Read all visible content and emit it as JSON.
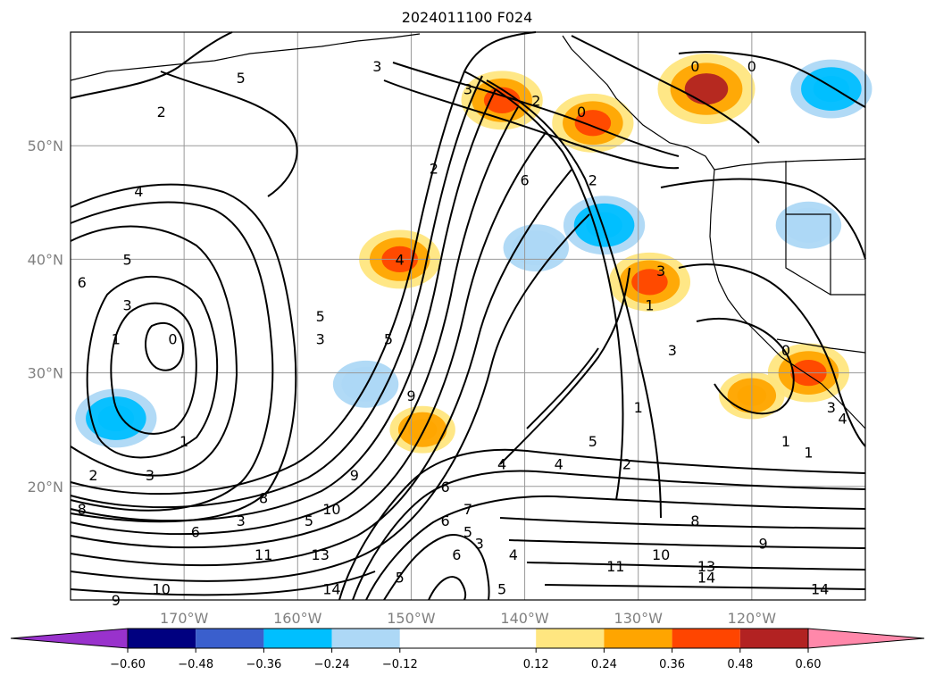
{
  "chart_data": {
    "type": "heatmap",
    "title": "2024011100 F024",
    "x_axis": {
      "range": [
        -180,
        -110
      ],
      "ticks": [
        -170,
        -160,
        -150,
        -140,
        -130,
        -120
      ],
      "tick_labels": [
        "170°W",
        "160°W",
        "150°W",
        "140°W",
        "130°W",
        "120°W"
      ]
    },
    "y_axis": {
      "range": [
        10,
        60
      ],
      "ticks": [
        20,
        30,
        40,
        50
      ],
      "tick_labels": [
        "20°N",
        "30°N",
        "40°N",
        "50°N"
      ]
    },
    "grid": true,
    "colorbar": {
      "orientation": "horizontal",
      "extend": "both",
      "bounds": [
        -0.6,
        -0.48,
        -0.36,
        -0.24,
        -0.12,
        0.12,
        0.24,
        0.36,
        0.48,
        0.6
      ],
      "tick_labels": [
        "−0.60",
        "−0.48",
        "−0.36",
        "−0.24",
        "−0.12",
        "0.12",
        "0.24",
        "0.36",
        "0.48",
        "0.60"
      ],
      "colors": [
        "#9932cc",
        "#000080",
        "#3a5fcd",
        "#00bfff",
        "#add8f6",
        "#ffffff",
        "#ffe680",
        "#ffa500",
        "#ff4500",
        "#b22222",
        "#ff88aa"
      ]
    },
    "shaded_regions": [
      {
        "lon": -142,
        "lat": 54,
        "value": 0.36
      },
      {
        "lon": -134,
        "lat": 52,
        "value": 0.36
      },
      {
        "lon": -124,
        "lat": 55,
        "value": 0.48
      },
      {
        "lon": -151,
        "lat": 40,
        "value": 0.36
      },
      {
        "lon": -129,
        "lat": 38,
        "value": 0.36
      },
      {
        "lon": -133,
        "lat": 43,
        "value": -0.36
      },
      {
        "lon": -139,
        "lat": 41,
        "value": -0.24
      },
      {
        "lon": -176,
        "lat": 26,
        "value": -0.36
      },
      {
        "lon": -154,
        "lat": 29,
        "value": -0.24
      },
      {
        "lon": -149,
        "lat": 25,
        "value": 0.24
      },
      {
        "lon": -113,
        "lat": 55,
        "value": -0.36
      },
      {
        "lon": -115,
        "lat": 43,
        "value": -0.24
      },
      {
        "lon": -115,
        "lat": 30,
        "value": 0.36
      },
      {
        "lon": -120,
        "lat": 28,
        "value": 0.24
      }
    ],
    "contour_labels": [
      {
        "lon": -165,
        "lat": 56,
        "text": "5"
      },
      {
        "lon": -172,
        "lat": 53,
        "text": "2"
      },
      {
        "lon": -174,
        "lat": 46,
        "text": "4"
      },
      {
        "lon": -175,
        "lat": 40,
        "text": "5"
      },
      {
        "lon": -179,
        "lat": 38,
        "text": "6"
      },
      {
        "lon": -175,
        "lat": 36,
        "text": "3"
      },
      {
        "lon": -176,
        "lat": 33,
        "text": "1"
      },
      {
        "lon": -171,
        "lat": 33,
        "text": "0"
      },
      {
        "lon": -153,
        "lat": 57,
        "text": "3"
      },
      {
        "lon": -158,
        "lat": 33,
        "text": "3"
      },
      {
        "lon": -158,
        "lat": 35,
        "text": "5"
      },
      {
        "lon": -151,
        "lat": 40,
        "text": "4"
      },
      {
        "lon": -148,
        "lat": 48,
        "text": "2"
      },
      {
        "lon": -152,
        "lat": 33,
        "text": "5"
      },
      {
        "lon": -150,
        "lat": 28,
        "text": "9"
      },
      {
        "lon": -145,
        "lat": 55,
        "text": "3"
      },
      {
        "lon": -139,
        "lat": 54,
        "text": "2"
      },
      {
        "lon": -135,
        "lat": 53,
        "text": "0"
      },
      {
        "lon": -140,
        "lat": 47,
        "text": "6"
      },
      {
        "lon": -134,
        "lat": 47,
        "text": "2"
      },
      {
        "lon": -125,
        "lat": 57,
        "text": "0"
      },
      {
        "lon": -120,
        "lat": 57,
        "text": "0"
      },
      {
        "lon": -128,
        "lat": 39,
        "text": "3"
      },
      {
        "lon": -129,
        "lat": 36,
        "text": "1"
      },
      {
        "lon": -127,
        "lat": 32,
        "text": "3"
      },
      {
        "lon": -130,
        "lat": 27,
        "text": "1"
      },
      {
        "lon": -134,
        "lat": 24,
        "text": "5"
      },
      {
        "lon": -117,
        "lat": 32,
        "text": "0"
      },
      {
        "lon": -113,
        "lat": 27,
        "text": "3"
      },
      {
        "lon": -112,
        "lat": 26,
        "text": "4"
      },
      {
        "lon": -115,
        "lat": 23,
        "text": "1"
      },
      {
        "lon": -170,
        "lat": 24,
        "text": "1"
      },
      {
        "lon": -178,
        "lat": 21,
        "text": "2"
      },
      {
        "lon": -173,
        "lat": 21,
        "text": "3"
      },
      {
        "lon": -163,
        "lat": 19,
        "text": "8"
      },
      {
        "lon": -165,
        "lat": 17,
        "text": "3"
      },
      {
        "lon": -159,
        "lat": 17,
        "text": "5"
      },
      {
        "lon": -169,
        "lat": 16,
        "text": "6"
      },
      {
        "lon": -179,
        "lat": 18,
        "text": "8"
      },
      {
        "lon": -155,
        "lat": 21,
        "text": "9"
      },
      {
        "lon": -157,
        "lat": 18,
        "text": "10"
      },
      {
        "lon": -147,
        "lat": 20,
        "text": "6"
      },
      {
        "lon": -147,
        "lat": 17,
        "text": "6"
      },
      {
        "lon": -145,
        "lat": 18,
        "text": "7"
      },
      {
        "lon": -145,
        "lat": 16,
        "text": "5"
      },
      {
        "lon": -144,
        "lat": 15,
        "text": "3"
      },
      {
        "lon": -146,
        "lat": 14,
        "text": "6"
      },
      {
        "lon": -141,
        "lat": 14,
        "text": "4"
      },
      {
        "lon": -151,
        "lat": 12,
        "text": "5"
      },
      {
        "lon": -142,
        "lat": 11,
        "text": "5"
      },
      {
        "lon": -158,
        "lat": 14,
        "text": "13"
      },
      {
        "lon": -163,
        "lat": 14,
        "text": "11"
      },
      {
        "lon": -157,
        "lat": 11,
        "text": "14"
      },
      {
        "lon": -172,
        "lat": 11,
        "text": "10"
      },
      {
        "lon": -176,
        "lat": 10,
        "text": "9"
      },
      {
        "lon": -131,
        "lat": 22,
        "text": "2"
      },
      {
        "lon": -125,
        "lat": 17,
        "text": "8"
      },
      {
        "lon": -128,
        "lat": 14,
        "text": "10"
      },
      {
        "lon": -132,
        "lat": 13,
        "text": "11"
      },
      {
        "lon": -124,
        "lat": 13,
        "text": "13"
      },
      {
        "lon": -124,
        "lat": 12,
        "text": "14"
      },
      {
        "lon": -119,
        "lat": 15,
        "text": "9"
      },
      {
        "lon": -114,
        "lat": 11,
        "text": "14"
      },
      {
        "lon": -117,
        "lat": 24,
        "text": "1"
      },
      {
        "lon": -142,
        "lat": 22,
        "text": "4"
      },
      {
        "lon": -137,
        "lat": 22,
        "text": "4"
      }
    ]
  }
}
